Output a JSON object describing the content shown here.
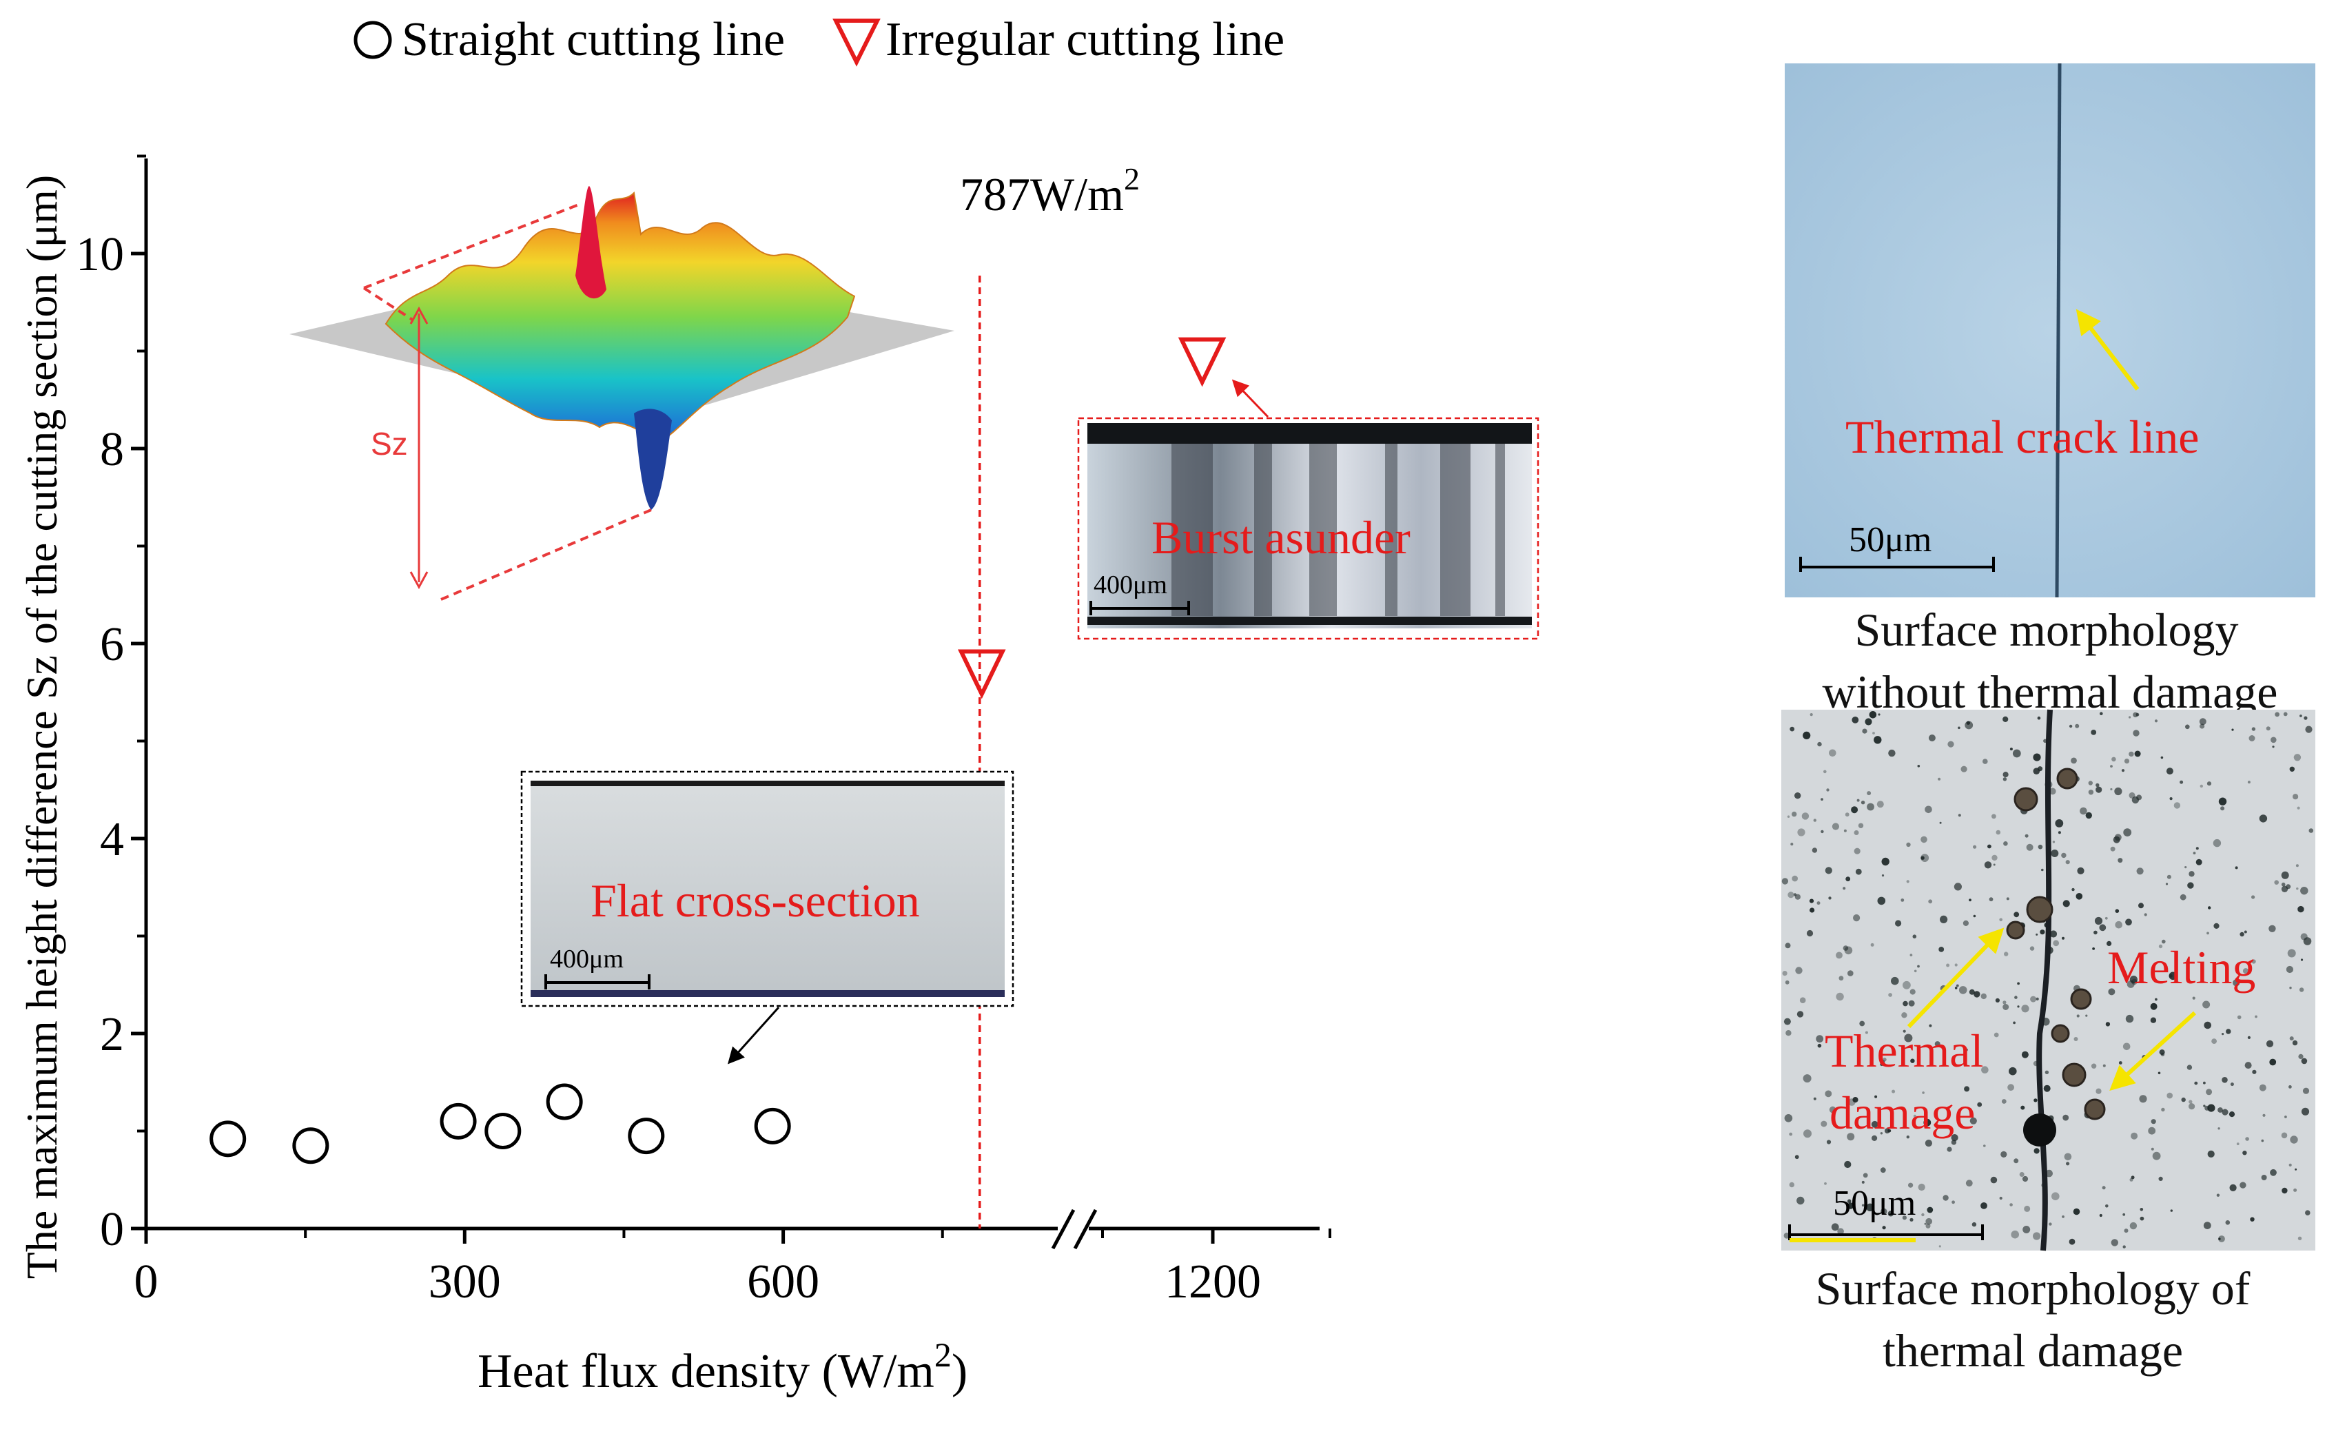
{
  "legend": {
    "straight_label": "Straight cutting line",
    "irregular_label": "Irregular cutting line"
  },
  "colors": {
    "straight_marker": "#000000",
    "irregular_marker": "#e51b1b",
    "annotation_red": "#e51b1b",
    "arrow_yellow": "#f5e400"
  },
  "chart_data": {
    "type": "scatter",
    "xlabel_main": "Heat flux density (W/m",
    "xlabel_sup": "2",
    "xlabel_close": ")",
    "ylabel": "The maximum height difference Sz of the cutting section (μm)",
    "xlim": [
      0,
      1330
    ],
    "ylim": [
      0,
      11
    ],
    "x_break_after": 790,
    "x_ticks": [
      {
        "value": 0,
        "label": "0"
      },
      {
        "value": 300,
        "label": "300"
      },
      {
        "value": 600,
        "label": "600"
      },
      {
        "value": 1200,
        "label": "1200"
      }
    ],
    "y_ticks": [
      {
        "value": 0,
        "label": "0"
      },
      {
        "value": 2,
        "label": "2"
      },
      {
        "value": 4,
        "label": "4"
      },
      {
        "value": 6,
        "label": "6"
      },
      {
        "value": 8,
        "label": "8"
      },
      {
        "value": 10,
        "label": "10"
      }
    ],
    "series": [
      {
        "name": "Straight cutting line",
        "marker": "circle",
        "points": [
          {
            "x": 77,
            "y": 0.92
          },
          {
            "x": 155,
            "y": 0.85
          },
          {
            "x": 294,
            "y": 1.1
          },
          {
            "x": 336,
            "y": 1.0
          },
          {
            "x": 394,
            "y": 1.3
          },
          {
            "x": 471,
            "y": 0.95
          },
          {
            "x": 590,
            "y": 1.05
          }
        ]
      },
      {
        "name": "Irregular cutting line",
        "marker": "triangle-down",
        "points": [
          {
            "x": 787,
            "y": 5.7
          },
          {
            "x": 1190,
            "y": 8.9
          }
        ]
      }
    ],
    "threshold": {
      "x": 787,
      "label_main": "787W/m",
      "label_sup": "2"
    }
  },
  "insets": {
    "sz_label": "Sz",
    "burst": {
      "label": "Burst asunder",
      "scale": "400μm"
    },
    "flat": {
      "label": "Flat cross-section",
      "scale": "400μm"
    }
  },
  "photos": {
    "top": {
      "annotation": "Thermal crack line",
      "scale": "50μm",
      "caption_line1": "Surface morphology",
      "caption_line2": "without thermal damage"
    },
    "bottom": {
      "annotation_melting": "Melting",
      "annotation_damage_line1": "Thermal",
      "annotation_damage_line2": "damage",
      "scale": "50μm",
      "caption_line1": "Surface morphology of",
      "caption_line2": "thermal damage"
    }
  }
}
